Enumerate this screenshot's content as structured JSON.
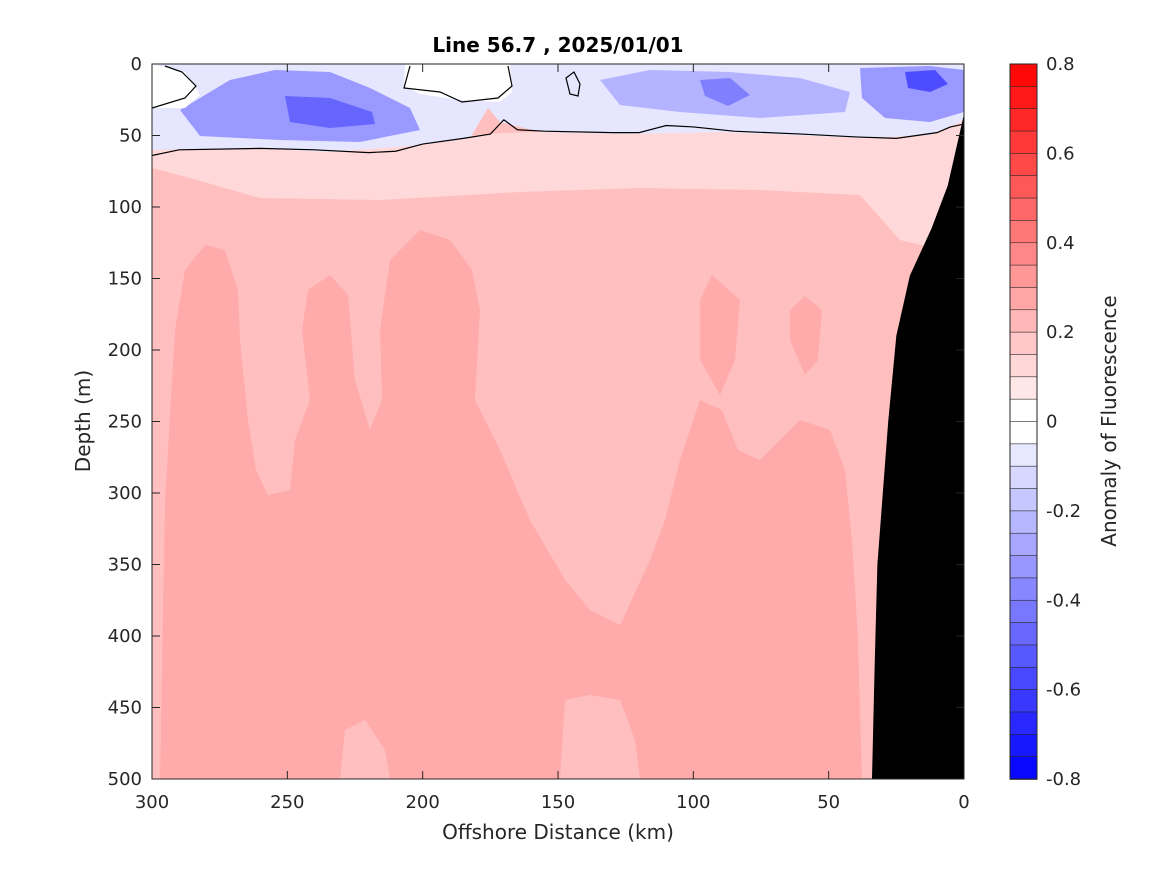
{
  "chart_data": {
    "type": "heatmap",
    "title": "Line 56.7 , 2025/01/01",
    "xlabel": "Offshore Distance (km)",
    "ylabel": "Depth (m)",
    "colorbar_label": "Anomaly of Fluorescence",
    "xlim": [
      300,
      0
    ],
    "ylim": [
      0,
      500
    ],
    "x_ticks": [
      300,
      250,
      200,
      150,
      100,
      50,
      0
    ],
    "y_ticks": [
      0,
      50,
      100,
      150,
      200,
      250,
      300,
      350,
      400,
      450,
      500
    ],
    "x_tick_labels": [
      "300",
      "250",
      "200",
      "150",
      "100",
      "50",
      "0"
    ],
    "y_tick_labels": [
      "0",
      "50",
      "100",
      "150",
      "200",
      "250",
      "300",
      "350",
      "400",
      "450",
      "500"
    ],
    "colorbar_range": [
      -0.8,
      0.8
    ],
    "colorbar_ticks": [
      0.8,
      0.6,
      0.4,
      0.2,
      0,
      -0.2,
      -0.4,
      -0.6,
      -0.8
    ],
    "colorbar_tick_labels": [
      "0.8",
      "0.6",
      "0.4",
      "0.2",
      "0",
      "-0.2",
      "-0.4",
      "-0.6",
      "-0.8"
    ],
    "colorbar_levels": 32,
    "colorbar_colors": {
      "positive": "#ff0000",
      "zero": "#ffffff",
      "negative": "#0000ff"
    },
    "zero_contour_depth": [
      {
        "x": 300,
        "depth": 64
      },
      {
        "x": 290,
        "depth": 60
      },
      {
        "x": 260,
        "depth": 59
      },
      {
        "x": 240,
        "depth": 60
      },
      {
        "x": 220,
        "depth": 62
      },
      {
        "x": 210,
        "depth": 61
      },
      {
        "x": 200,
        "depth": 56
      },
      {
        "x": 185,
        "depth": 52
      },
      {
        "x": 175,
        "depth": 49
      },
      {
        "x": 170,
        "depth": 39
      },
      {
        "x": 165,
        "depth": 46
      },
      {
        "x": 155,
        "depth": 47
      },
      {
        "x": 130,
        "depth": 48
      },
      {
        "x": 120,
        "depth": 48
      },
      {
        "x": 110,
        "depth": 43
      },
      {
        "x": 100,
        "depth": 44
      },
      {
        "x": 85,
        "depth": 47
      },
      {
        "x": 60,
        "depth": 49
      },
      {
        "x": 40,
        "depth": 51
      },
      {
        "x": 25,
        "depth": 52
      },
      {
        "x": 10,
        "depth": 48
      },
      {
        "x": 5,
        "depth": 44
      },
      {
        "x": 0,
        "depth": 42
      }
    ],
    "bathymetry_depth": [
      {
        "x": 0,
        "depth": 35
      },
      {
        "x": 6,
        "depth": 85
      },
      {
        "x": 12,
        "depth": 115
      },
      {
        "x": 20,
        "depth": 148
      },
      {
        "x": 25,
        "depth": 190
      },
      {
        "x": 28,
        "depth": 250
      },
      {
        "x": 30,
        "depth": 300
      },
      {
        "x": 32,
        "depth": 350
      },
      {
        "x": 33,
        "depth": 420
      },
      {
        "x": 34,
        "depth": 500
      }
    ],
    "field_summary": [
      {
        "region": "surface layer 0-50 m",
        "anomaly_range": [
          -0.5,
          0.05
        ]
      },
      {
        "region": "core minimum near 15 km, 10 m",
        "anomaly": -0.5
      },
      {
        "region": "below 60 m",
        "anomaly_range": [
          0.15,
          0.35
        ]
      }
    ]
  }
}
